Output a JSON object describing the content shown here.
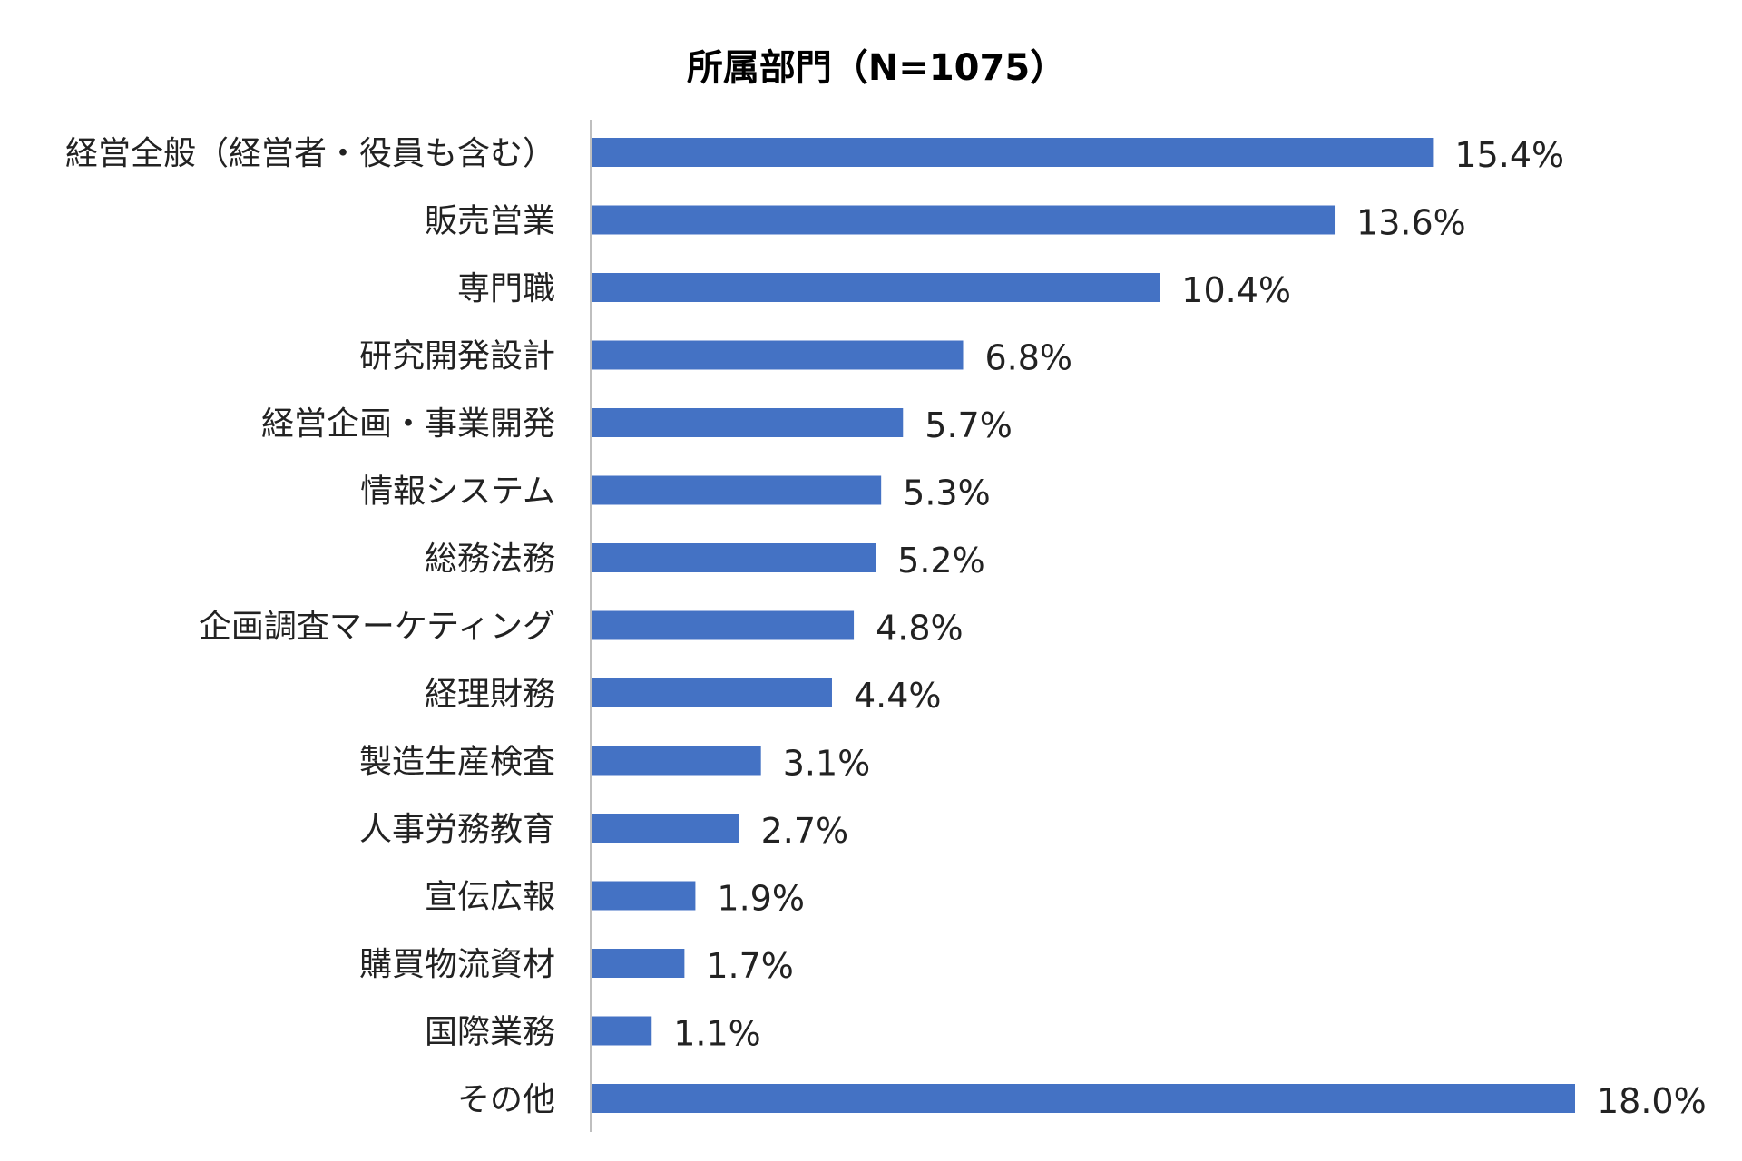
{
  "chart_data": {
    "type": "bar",
    "orientation": "horizontal",
    "title": "所属部門（N=1075）",
    "xlabel": "",
    "ylabel": "",
    "grid": false,
    "legend": "none",
    "xlim": [
      0,
      18.0
    ],
    "categories": [
      "経営全般（経営者・役員も含む）",
      "販売営業",
      "専門職",
      "研究開発設計",
      "経営企画・事業開発",
      "情報システム",
      "総務法務",
      "企画調査マーケティング",
      "経理財務",
      "製造生産検査",
      "人事労務教育",
      "宣伝広報",
      "購買物流資材",
      "国際業務",
      "その他"
    ],
    "values": [
      15.4,
      13.6,
      10.4,
      6.8,
      5.7,
      5.3,
      5.2,
      4.8,
      4.4,
      3.1,
      2.7,
      1.9,
      1.7,
      1.1,
      18.0
    ],
    "value_labels": [
      "15.4%",
      "13.6%",
      "10.4%",
      "6.8%",
      "5.7%",
      "5.3%",
      "5.2%",
      "4.8%",
      "4.4%",
      "3.1%",
      "2.7%",
      "1.9%",
      "1.7%",
      "1.1%",
      "18.0%"
    ],
    "bar_color": "#4472C4",
    "axis_color": "#BFBFBF"
  }
}
